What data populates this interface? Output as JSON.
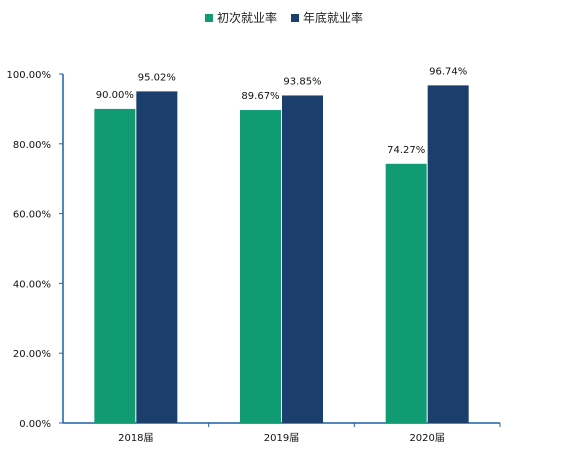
{
  "chart_data": {
    "type": "bar",
    "categories": [
      "2018届",
      "2019届",
      "2020届"
    ],
    "series": [
      {
        "name": "初次就业率",
        "values": [
          90.0,
          89.67,
          74.27
        ],
        "labels": [
          "90.00%",
          "89.67%",
          "74.27%"
        ],
        "color": "#119b73"
      },
      {
        "name": "年底就业率",
        "values": [
          95.02,
          93.85,
          96.74
        ],
        "labels": [
          "95.02%",
          "93.85%",
          "96.74%"
        ],
        "color": "#1b3e6d"
      }
    ],
    "yticks": [
      "0.00%",
      "20.00%",
      "40.00%",
      "60.00%",
      "80.00%",
      "100.00%"
    ],
    "ylim": [
      0,
      100
    ],
    "title": "",
    "xlabel": "",
    "ylabel": "",
    "grid": false,
    "legend_position": "top-center",
    "axis_color": "#1f5fa8"
  }
}
